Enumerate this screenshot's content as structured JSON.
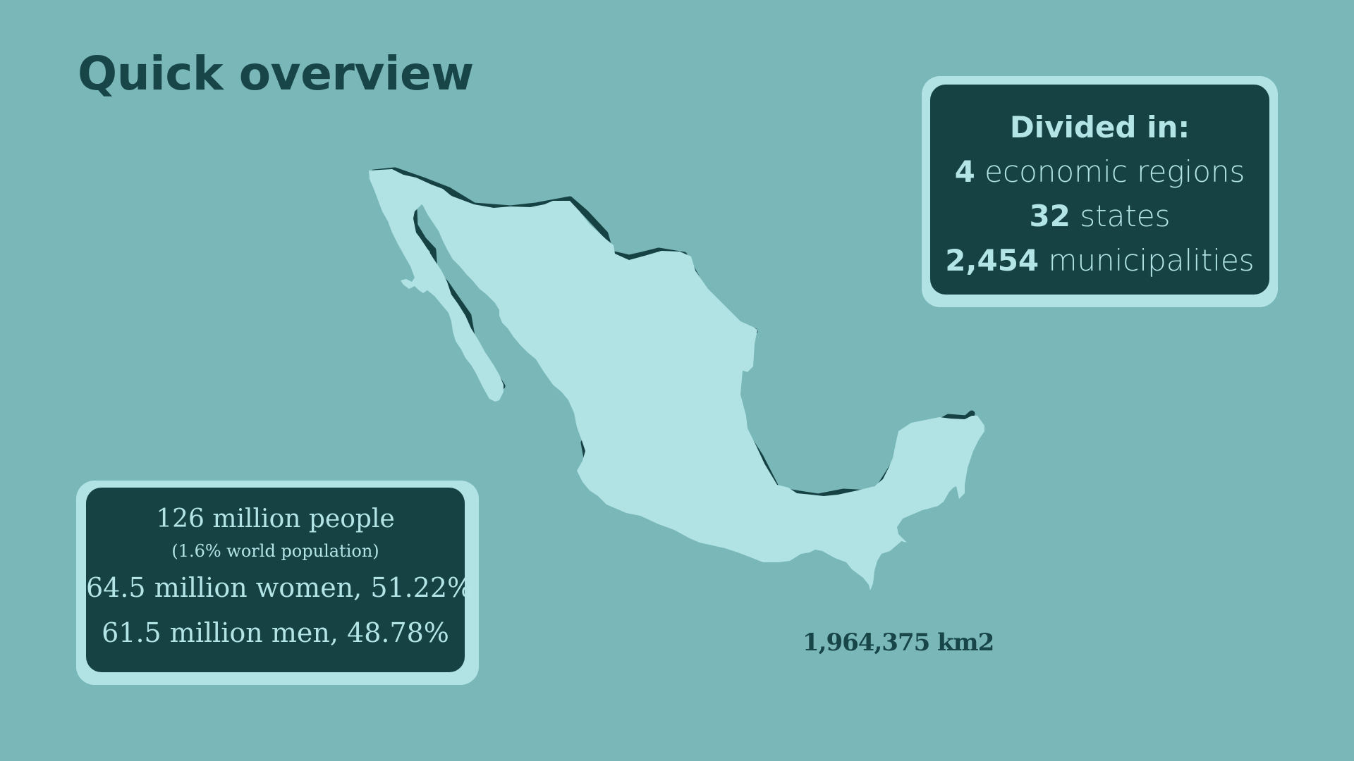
{
  "title": "Quick overview",
  "colors": {
    "background": "#7ab7b8",
    "dark": "#164244",
    "light": "#b1e3e5"
  },
  "divisions": {
    "heading": "Divided in:",
    "rows": [
      {
        "number": "4",
        "label": " economic regions"
      },
      {
        "number": "32",
        "label": " states"
      },
      {
        "number": "2,454",
        "label": " municipalities"
      }
    ]
  },
  "population": {
    "total_number": "126",
    "total_label": " million people",
    "world_share": "(1.6% world population)",
    "women": "64.5 million women, 51.22%",
    "men": "61.5 million men, 48.78%"
  },
  "map": {
    "icon": "mexico-map-icon"
  },
  "area": "1,964,375 km2"
}
